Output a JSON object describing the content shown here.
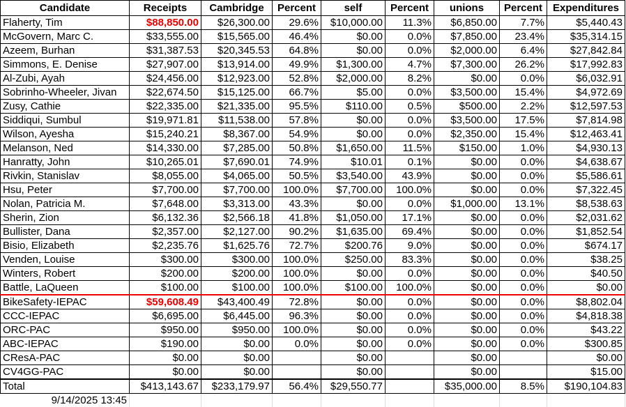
{
  "table": {
    "header": [
      "Candidate",
      "Receipts",
      "Cambridge",
      "Percent",
      "self",
      "Percent",
      "unions",
      "Percent",
      "Expenditures"
    ],
    "rows": [
      [
        "Flaherty, Tim",
        "$88,850.00",
        "$26,300.00",
        "29.6%",
        "$10,000.00",
        "11.3%",
        "$6,850.00",
        "7.7%",
        "$5,440.43"
      ],
      [
        "McGovern, Marc C.",
        "$33,555.00",
        "$15,565.00",
        "46.4%",
        "$0.00",
        "0.0%",
        "$7,850.00",
        "23.4%",
        "$35,314.15"
      ],
      [
        "Azeem, Burhan",
        "$31,387.53",
        "$20,345.53",
        "64.8%",
        "$0.00",
        "0.0%",
        "$2,000.00",
        "6.4%",
        "$27,842.84"
      ],
      [
        "Simmons, E. Denise",
        "$27,907.00",
        "$13,914.00",
        "49.9%",
        "$1,300.00",
        "4.7%",
        "$7,300.00",
        "26.2%",
        "$17,992.83"
      ],
      [
        "Al-Zubi, Ayah",
        "$24,456.00",
        "$12,923.00",
        "52.8%",
        "$2,000.00",
        "8.2%",
        "$0.00",
        "0.0%",
        "$6,032.91"
      ],
      [
        "Sobrinho-Wheeler, Jivan",
        "$22,674.50",
        "$15,125.00",
        "66.7%",
        "$5.00",
        "0.0%",
        "$3,500.00",
        "15.4%",
        "$4,972.69"
      ],
      [
        "Zusy, Cathie",
        "$22,335.00",
        "$21,335.00",
        "95.5%",
        "$110.00",
        "0.5%",
        "$500.00",
        "2.2%",
        "$12,597.53"
      ],
      [
        "Siddiqui, Sumbul",
        "$19,971.81",
        "$11,538.00",
        "57.8%",
        "$0.00",
        "0.0%",
        "$3,500.00",
        "17.5%",
        "$7,814.98"
      ],
      [
        "Wilson, Ayesha",
        "$15,240.21",
        "$8,367.00",
        "54.9%",
        "$0.00",
        "0.0%",
        "$2,350.00",
        "15.4%",
        "$12,463.41"
      ],
      [
        "Melanson, Ned",
        "$14,330.00",
        "$7,285.00",
        "50.8%",
        "$1,650.00",
        "11.5%",
        "$150.00",
        "1.0%",
        "$4,930.13"
      ],
      [
        "Hanratty, John",
        "$10,265.01",
        "$7,690.01",
        "74.9%",
        "$10.01",
        "0.1%",
        "$0.00",
        "0.0%",
        "$4,638.67"
      ],
      [
        "Rivkin, Stanislav",
        "$8,055.00",
        "$4,065.00",
        "50.5%",
        "$3,540.00",
        "43.9%",
        "$0.00",
        "0.0%",
        "$5,586.61"
      ],
      [
        "Hsu, Peter",
        "$7,700.00",
        "$7,700.00",
        "100.0%",
        "$7,700.00",
        "100.0%",
        "$0.00",
        "0.0%",
        "$7,322.45"
      ],
      [
        "Nolan, Patricia M.",
        "$7,648.00",
        "$3,313.00",
        "43.3%",
        "$0.00",
        "0.0%",
        "$1,000.00",
        "13.1%",
        "$8,538.63"
      ],
      [
        "Sherin, Zion",
        "$6,132.36",
        "$2,566.18",
        "41.8%",
        "$1,050.00",
        "17.1%",
        "$0.00",
        "0.0%",
        "$2,031.62"
      ],
      [
        "Bullister, Dana",
        "$2,357.00",
        "$2,127.00",
        "90.2%",
        "$1,635.00",
        "69.4%",
        "$0.00",
        "0.0%",
        "$1,852.54"
      ],
      [
        "Bisio, Elizabeth",
        "$2,235.76",
        "$1,625.76",
        "72.7%",
        "$200.76",
        "9.0%",
        "$0.00",
        "0.0%",
        "$674.17"
      ],
      [
        "Venden, Louise",
        "$300.00",
        "$300.00",
        "100.0%",
        "$250.00",
        "83.3%",
        "$0.00",
        "0.0%",
        "$38.25"
      ],
      [
        "Winters, Robert",
        "$200.00",
        "$200.00",
        "100.0%",
        "$0.00",
        "0.0%",
        "$0.00",
        "0.0%",
        "$40.50"
      ],
      [
        "Battle, LaQueen",
        "$100.00",
        "$100.00",
        "100.0%",
        "$100.00",
        "100.0%",
        "$0.00",
        "0.0%",
        "$0.00"
      ],
      [
        "BikeSafety-IEPAC",
        "$59,608.49",
        "$43,400.49",
        "72.8%",
        "$0.00",
        "0.0%",
        "$0.00",
        "0.0%",
        "$8,802.04"
      ],
      [
        "CCC-IEPAC",
        "$6,695.00",
        "$6,445.00",
        "96.3%",
        "$0.00",
        "0.0%",
        "$0.00",
        "0.0%",
        "$4,818.38"
      ],
      [
        "ORC-PAC",
        "$950.00",
        "$950.00",
        "100.0%",
        "$0.00",
        "0.0%",
        "$0.00",
        "0.0%",
        "$43.22"
      ],
      [
        "ABC-IEPAC",
        "$190.00",
        "$0.00",
        "0.0%",
        "$0.00",
        "0.0%",
        "$0.00",
        "0.0%",
        "$300.85"
      ],
      [
        "CResA-PAC",
        "$0.00",
        "$0.00",
        null,
        "$0.00",
        null,
        "$0.00",
        null,
        "$0.00"
      ],
      [
        "CV4GG-PAC",
        "$0.00",
        "$0.00",
        null,
        "$0.00",
        null,
        "$0.00",
        null,
        "$15.00"
      ],
      [
        "Total",
        "$413,143.67",
        "$233,179.97",
        "56.4%",
        "$29,550.77",
        null,
        "$35,000.00",
        "8.5%",
        "$190,104.83"
      ]
    ]
  },
  "footer": {
    "timestamp": "9/14/2025 13:45"
  }
}
